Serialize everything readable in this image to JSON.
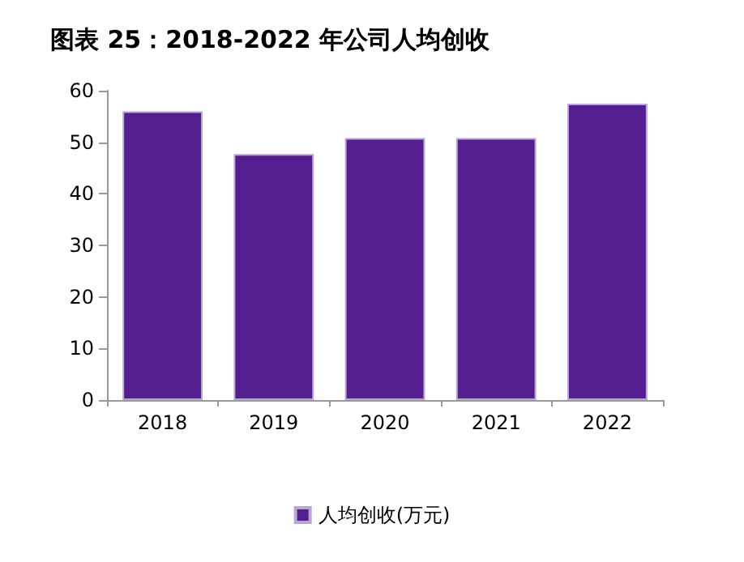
{
  "chart_data": {
    "type": "bar",
    "title": "图表 25：2018-2022 年公司人均创收",
    "categories": [
      "2018",
      "2019",
      "2020",
      "2021",
      "2022"
    ],
    "series": [
      {
        "name": "人均创收(万元)",
        "color": "#541e90",
        "values": [
          56.0,
          47.7,
          50.8,
          50.8,
          57.5
        ]
      }
    ],
    "ylim": [
      0,
      60
    ],
    "yticks": [
      0,
      10,
      20,
      30,
      40,
      50,
      60
    ],
    "grid": false,
    "legend": "bottom"
  }
}
